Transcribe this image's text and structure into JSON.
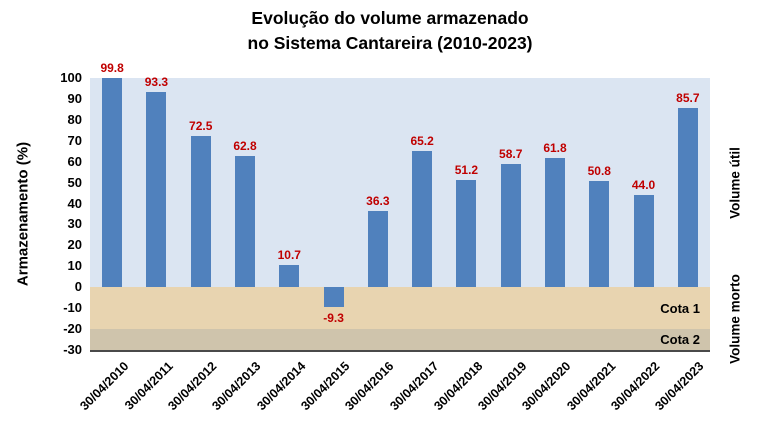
{
  "title": {
    "line1": "Evolução do volume armazenado",
    "line2": "no Sistema Cantareira (2010-2023)"
  },
  "y_axis_label": "Armazenamento (%)",
  "chart_data": {
    "type": "bar",
    "title": "Evolução do volume armazenado no Sistema Cantareira (2010-2023)",
    "xlabel": "",
    "ylabel": "Armazenamento (%)",
    "ylim": [
      -30,
      100
    ],
    "yticks": [
      100,
      90,
      80,
      70,
      60,
      50,
      40,
      30,
      20,
      10,
      0,
      -10,
      -20,
      -30
    ],
    "grid": false,
    "legend": "none",
    "categories": [
      "30/04/2010",
      "30/04/2011",
      "30/04/2012",
      "30/04/2013",
      "30/04/2014",
      "30/04/2015",
      "30/04/2016",
      "30/04/2017",
      "30/04/2018",
      "30/04/2019",
      "30/04/2020",
      "30/04/2021",
      "30/04/2022",
      "30/04/2023"
    ],
    "values": [
      99.8,
      93.3,
      72.5,
      62.8,
      10.7,
      -9.3,
      36.3,
      65.2,
      51.2,
      58.7,
      61.8,
      50.8,
      44.0,
      85.7
    ],
    "bar_color": "#5081bd",
    "label_color": "#c00000",
    "bands": [
      {
        "from": 0,
        "to": 100,
        "color": "#dbe5f2",
        "label": ""
      },
      {
        "from": -20,
        "to": 0,
        "color": "#e8d4b0",
        "label": "Cota 1"
      },
      {
        "from": -30,
        "to": -20,
        "color": "#cfc4ac",
        "label": "Cota 2"
      }
    ],
    "right_annotations": [
      {
        "text": "Volume útil",
        "span": [
          0,
          100
        ]
      },
      {
        "text": "Volume morto",
        "span": [
          -30,
          0
        ]
      }
    ]
  }
}
